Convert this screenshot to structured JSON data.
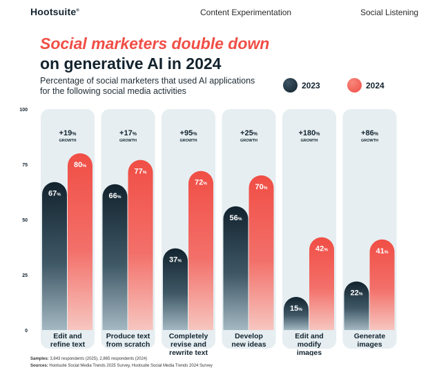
{
  "header": {
    "logo": "Hootsuite",
    "logo_mark": "®",
    "nav": [
      "Content Experimentation",
      "Social Listening"
    ]
  },
  "title_line1": "Social marketers double down",
  "title_line2": "on generative AI in 2024",
  "subtitle": "Percentage of social marketers that used AI applications for the following social media activities",
  "colors": {
    "dark": "#12232e",
    "red": "#f04e45",
    "panel": "#e6eef1"
  },
  "chart_data": {
    "type": "bar",
    "categories": [
      [
        "Edit and",
        "refine text"
      ],
      [
        "Produce text",
        "from scratch"
      ],
      [
        "Completely",
        "revise and",
        "rewrite text"
      ],
      [
        "Develop",
        "new ideas"
      ],
      [
        "Edit and",
        "modify",
        "images"
      ],
      [
        "Generate",
        "images"
      ]
    ],
    "series": [
      {
        "name": "2023",
        "values": [
          67,
          66,
          37,
          56,
          15,
          22
        ]
      },
      {
        "name": "2024",
        "values": [
          80,
          77,
          72,
          70,
          42,
          41
        ]
      }
    ],
    "growth": [
      "+19%",
      "+17%",
      "+95%",
      "+25%",
      "+180%",
      "+86%"
    ],
    "growth_label": "GROWTH",
    "yticks": [
      0,
      25,
      50,
      75,
      100
    ],
    "ylim": [
      0,
      100
    ],
    "value_suffix": "%"
  },
  "footer": {
    "samples_label": "Samples:",
    "samples_text": "3,843 respondents (2025), 2,865 respondents (2024)",
    "sources_label": "Sources:",
    "sources_text": "Hootsuite Social Media Trends 2025 Survey, Hootsuite Social Media Trends 2024 Survey"
  }
}
